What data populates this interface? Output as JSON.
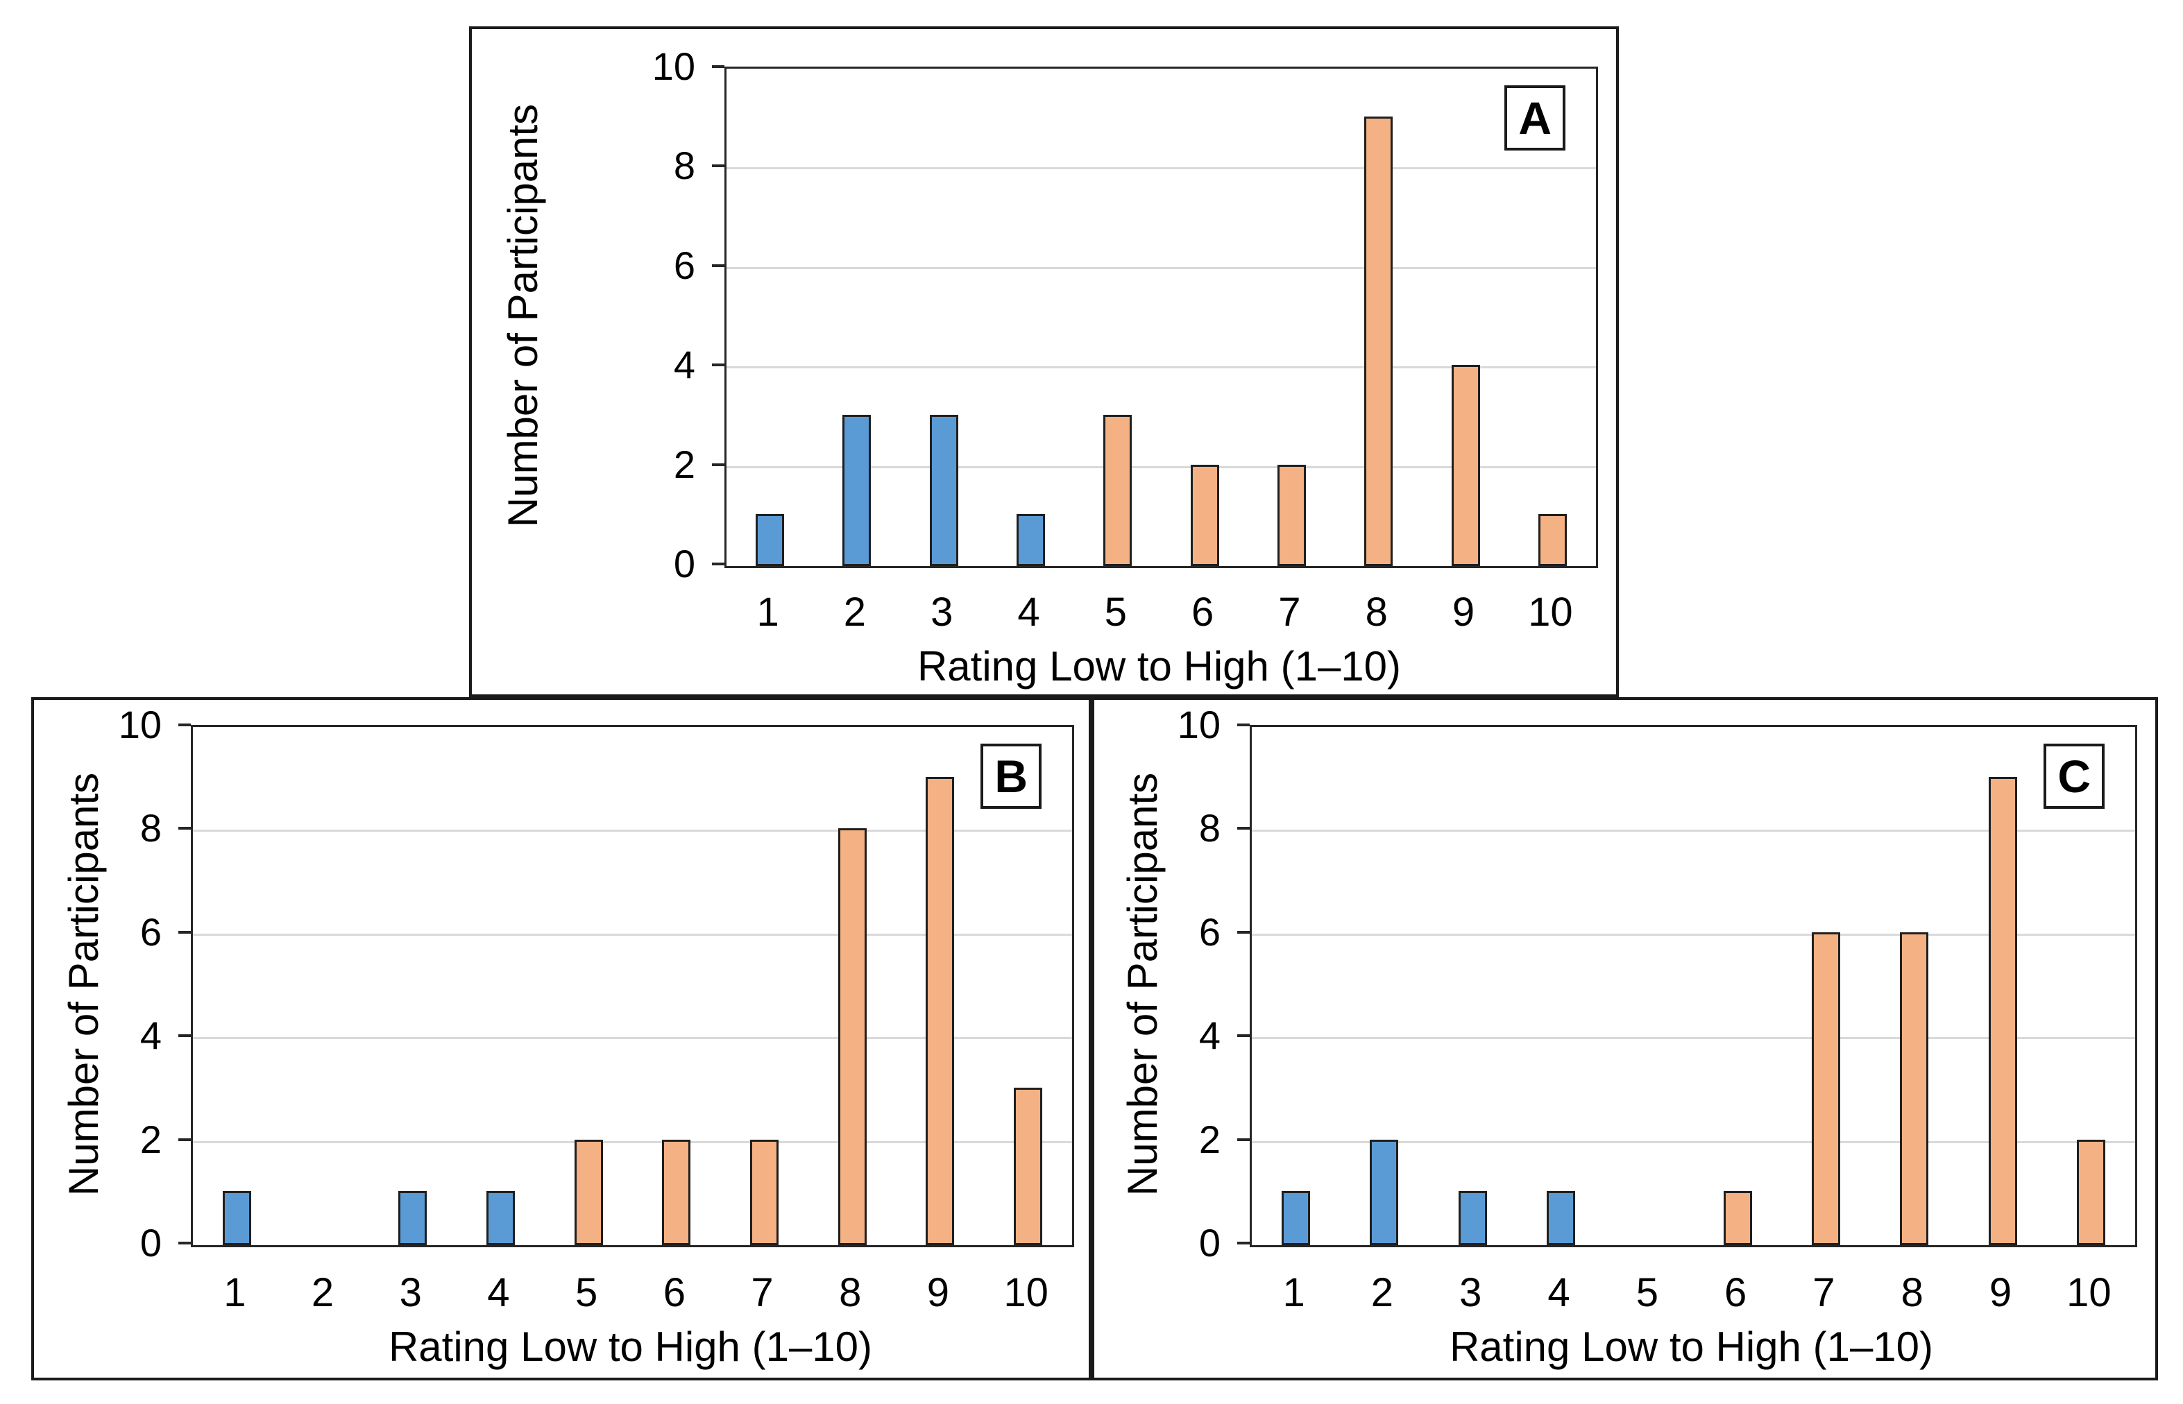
{
  "figure": {
    "description_labels": {
      "ylabel": "Number of Participants",
      "xlabel": "Rating Low to High (1–10)"
    },
    "palette": {
      "low_color": "#5B9BD5",
      "high_color": "#F4B183",
      "bar_border": "#1F1F1F",
      "gridline": "#D9D9D9",
      "frame": "#262626"
    }
  },
  "chart_data": [
    {
      "type": "bar",
      "panel": "A",
      "title": "",
      "xlabel": "Rating Low to High (1–10)",
      "ylabel": "Number of Participants",
      "categories": [
        1,
        2,
        3,
        4,
        5,
        6,
        7,
        8,
        9,
        10
      ],
      "values": [
        1,
        3,
        3,
        1,
        3,
        2,
        2,
        9,
        4,
        1
      ],
      "groups": [
        "low",
        "low",
        "low",
        "low",
        "high",
        "high",
        "high",
        "high",
        "high",
        "high"
      ],
      "yticks": [
        0,
        2,
        4,
        6,
        8,
        10
      ],
      "ylim": [
        0,
        10
      ],
      "grid": "horizontal at 2,4,6,8",
      "legend": "none"
    },
    {
      "type": "bar",
      "panel": "B",
      "title": "",
      "xlabel": "Rating Low to High (1–10)",
      "ylabel": "Number of Participants",
      "categories": [
        1,
        2,
        3,
        4,
        5,
        6,
        7,
        8,
        9,
        10
      ],
      "values": [
        1,
        0,
        1,
        1,
        2,
        2,
        2,
        8,
        9,
        3
      ],
      "groups": [
        "low",
        "low",
        "low",
        "low",
        "high",
        "high",
        "high",
        "high",
        "high",
        "high"
      ],
      "yticks": [
        0,
        2,
        4,
        6,
        8,
        10
      ],
      "ylim": [
        0,
        10
      ],
      "grid": "horizontal at 2,4,6,8",
      "legend": "none"
    },
    {
      "type": "bar",
      "panel": "C",
      "title": "",
      "xlabel": "Rating Low to High (1–10)",
      "ylabel": "Number of Participants",
      "categories": [
        1,
        2,
        3,
        4,
        5,
        6,
        7,
        8,
        9,
        10
      ],
      "values": [
        1,
        2,
        1,
        1,
        0,
        1,
        6,
        6,
        9,
        2
      ],
      "groups": [
        "low",
        "low",
        "low",
        "low",
        "high",
        "high",
        "high",
        "high",
        "high",
        "high"
      ],
      "yticks": [
        0,
        2,
        4,
        6,
        8,
        10
      ],
      "ylim": [
        0,
        10
      ],
      "grid": "horizontal at 2,4,6,8",
      "legend": "none"
    }
  ]
}
